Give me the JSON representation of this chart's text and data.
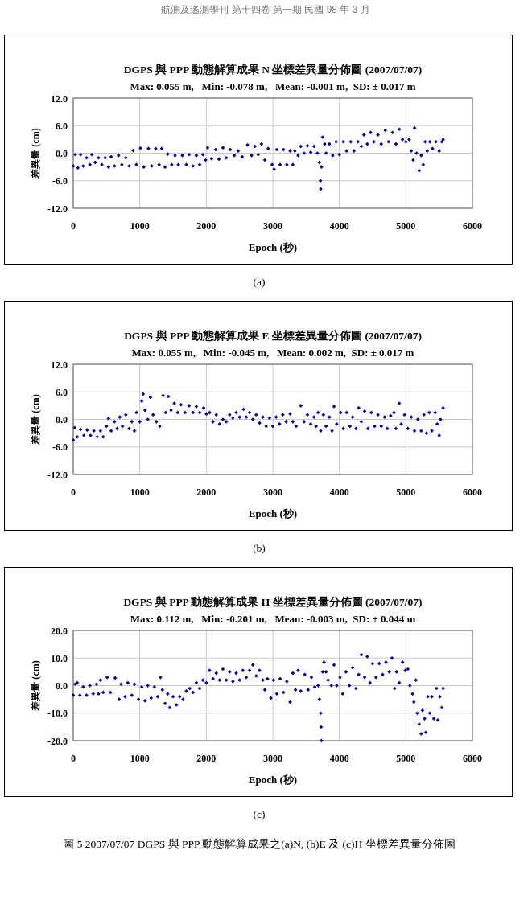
{
  "chart_data": [
    {
      "type": "scatter",
      "title": "DGPS 與 PPP 動態解算成果 N 坐標差異量分佈圖 (2007/07/07)",
      "subtitle": "Max: 0.055 m,   Min: -0.078 m,   Mean: -0.001 m,  SD: ± 0.017 m",
      "xlabel": "Epoch (秒)",
      "ylabel": "差異量 (cm)",
      "annotations": [
        "航測及遙測學刊 第十四卷 第一期 民國 98 年 3 月",
        "(a)"
      ],
      "x": [
        0,
        30,
        70,
        110,
        150,
        200,
        250,
        280,
        330,
        380,
        430,
        480,
        530,
        570,
        620,
        680,
        730,
        790,
        840,
        900,
        950,
        1010,
        1060,
        1130,
        1180,
        1240,
        1290,
        1330,
        1380,
        1420,
        1480,
        1530,
        1580,
        1640,
        1700,
        1740,
        1800,
        1850,
        1900,
        1950,
        1990,
        2020,
        2080,
        2140,
        2190,
        2250,
        2300,
        2360,
        2420,
        2480,
        2540,
        2620,
        2680,
        2730,
        2780,
        2830,
        2880,
        2930,
        2990,
        3020,
        3060,
        3110,
        3160,
        3210,
        3260,
        3300,
        3330,
        3380,
        3420,
        3470,
        3520,
        3570,
        3620,
        3670,
        3700,
        3715,
        3720,
        3730,
        3750,
        3780,
        3800,
        3850,
        3900,
        3950,
        4000,
        4060,
        4110,
        4170,
        4220,
        4280,
        4330,
        4370,
        4420,
        4470,
        4520,
        4580,
        4630,
        4690,
        4740,
        4800,
        4850,
        4900,
        4950,
        5000,
        5050,
        5080,
        5110,
        5130,
        5160,
        5200,
        5230,
        5260,
        5290,
        5320,
        5360,
        5400,
        5450,
        5500,
        5540,
        5560
      ],
      "series": [
        {
          "color": "#000080",
          "values": [
            -2.8,
            -0.3,
            -3.2,
            -0.3,
            -2.8,
            -1.0,
            -2.5,
            -0.3,
            -2.0,
            -1.0,
            -2.5,
            -1.0,
            -3.0,
            -0.8,
            -2.8,
            -0.5,
            -2.5,
            -1.0,
            -2.8,
            0.6,
            -2.5,
            1.1,
            -3.0,
            1.0,
            -2.8,
            1.0,
            -2.5,
            1.0,
            -3.0,
            -0.2,
            -2.5,
            -0.5,
            -2.5,
            -0.5,
            -2.5,
            -0.3,
            -2.8,
            -0.5,
            -2.5,
            -0.3,
            -1.5,
            1.2,
            -1.2,
            0.8,
            -1.3,
            1.2,
            -1.0,
            0.8,
            -0.5,
            0.5,
            -0.8,
            1.8,
            -0.5,
            1.5,
            -0.3,
            2.0,
            -1.5,
            1.0,
            -2.5,
            -3.5,
            0.8,
            -2.5,
            0.8,
            -2.5,
            0.5,
            -2.5,
            0.5,
            -0.5,
            1.5,
            0.0,
            1.6,
            0.2,
            1.5,
            0.0,
            -2.0,
            -6.0,
            -7.8,
            -3.0,
            3.5,
            2.0,
            0.0,
            2.0,
            -0.5,
            2.5,
            -0.3,
            2.5,
            0.5,
            2.5,
            0.5,
            2.5,
            1.5,
            4.0,
            2.0,
            4.5,
            2.5,
            4.0,
            2.0,
            5.0,
            2.5,
            4.5,
            2.0,
            5.2,
            3.0,
            2.5,
            3.0,
            0.5,
            -1.5,
            5.5,
            0.0,
            -3.8,
            -0.5,
            -2.5,
            2.5,
            0.5,
            2.5,
            1.0,
            2.5,
            0.5,
            2.5,
            3.0
          ]
        }
      ],
      "xlim": [
        0,
        6000
      ],
      "ylim": [
        -12,
        12
      ],
      "xticks": [
        0,
        1000,
        2000,
        3000,
        4000,
        5000,
        6000
      ],
      "yticks": [
        {
          "value": 12,
          "label": "12.0"
        },
        {
          "value": 6,
          "label": "6.0"
        },
        {
          "value": 0,
          "label": "0.0"
        },
        {
          "value": -6,
          "label": "-6.0"
        },
        {
          "value": -12,
          "label": "-12.0"
        }
      ],
      "grid": true,
      "marker": "diamond"
    },
    {
      "type": "scatter",
      "title": "DGPS 與 PPP 動態解算成果 E 坐標差異量分佈圖 (2007/07/07)",
      "subtitle": "Max: 0.055 m,   Min: -0.045 m,   Mean: 0.002 m,  SD: ± 0.017 m",
      "xlabel": "Epoch (秒)",
      "ylabel": "差異量 (cm)",
      "annotations": [
        "(b)"
      ],
      "x": [
        0,
        20,
        60,
        110,
        160,
        210,
        260,
        310,
        360,
        410,
        450,
        500,
        530,
        570,
        620,
        660,
        700,
        740,
        790,
        840,
        880,
        920,
        950,
        1000,
        1030,
        1050,
        1080,
        1120,
        1160,
        1200,
        1250,
        1300,
        1350,
        1390,
        1430,
        1470,
        1520,
        1570,
        1620,
        1680,
        1740,
        1800,
        1850,
        1900,
        1960,
        2000,
        2050,
        2100,
        2150,
        2200,
        2250,
        2300,
        2350,
        2400,
        2450,
        2500,
        2560,
        2600,
        2650,
        2700,
        2750,
        2800,
        2850,
        2900,
        2950,
        3000,
        3050,
        3100,
        3150,
        3200,
        3260,
        3300,
        3350,
        3420,
        3470,
        3520,
        3570,
        3620,
        3650,
        3680,
        3720,
        3760,
        3800,
        3850,
        3890,
        3920,
        3960,
        4020,
        4060,
        4110,
        4160,
        4200,
        4250,
        4290,
        4330,
        4380,
        4430,
        4480,
        4530,
        4580,
        4630,
        4680,
        4720,
        4770,
        4820,
        4850,
        4900,
        4930,
        4980,
        5030,
        5080,
        5130,
        5180,
        5230,
        5270,
        5310,
        5350,
        5390,
        5440,
        5470,
        5500,
        5520,
        5560
      ],
      "series": [
        {
          "color": "#000080",
          "values": [
            -4.5,
            -1.8,
            -3.8,
            -2.2,
            -3.5,
            -2.3,
            -3.5,
            -2.5,
            -3.8,
            -2.5,
            -3.8,
            -1.5,
            0.2,
            -2.5,
            -0.5,
            -2.0,
            0.5,
            -1.5,
            1.0,
            -2.0,
            -0.5,
            -2.5,
            1.5,
            -0.5,
            4.0,
            5.5,
            2.0,
            0.0,
            4.8,
            1.0,
            -0.5,
            -1.5,
            5.2,
            1.5,
            5.0,
            2.0,
            3.5,
            1.5,
            3.2,
            1.5,
            3.0,
            1.5,
            2.8,
            1.5,
            2.5,
            1.2,
            1.5,
            -0.5,
            1.0,
            -1.0,
            0.0,
            -0.5,
            1.0,
            0.3,
            1.5,
            0.5,
            2.2,
            0.5,
            1.5,
            0.0,
            1.0,
            -0.8,
            0.5,
            -1.5,
            0.3,
            -1.5,
            0.5,
            -1.0,
            1.0,
            -0.5,
            1.2,
            -0.5,
            -1.5,
            3.0,
            -0.5,
            1.0,
            -1.0,
            0.5,
            -1.5,
            1.5,
            -2.5,
            1.0,
            -1.5,
            0.5,
            -2.5,
            2.8,
            -1.0,
            1.5,
            -2.0,
            1.5,
            -1.5,
            0.5,
            -2.0,
            2.5,
            -0.5,
            1.8,
            -2.0,
            1.5,
            -1.5,
            1.0,
            -1.5,
            0.5,
            -2.0,
            0.8,
            1.5,
            -2.0,
            3.5,
            -1.0,
            1.0,
            -2.0,
            0.5,
            -2.5,
            0.0,
            -2.5,
            1.0,
            -3.0,
            1.5,
            -2.5,
            1.5,
            -1.0,
            -3.5,
            0.0,
            2.5
          ]
        }
      ],
      "xlim": [
        0,
        6000
      ],
      "ylim": [
        -12,
        12
      ],
      "xticks": [
        0,
        1000,
        2000,
        3000,
        4000,
        5000,
        6000
      ],
      "yticks": [
        {
          "value": 12,
          "label": "12.0"
        },
        {
          "value": 6,
          "label": "6.0"
        },
        {
          "value": 0,
          "label": "0.0"
        },
        {
          "value": -6,
          "label": "-6.0"
        },
        {
          "value": -12,
          "label": "-12.0"
        }
      ],
      "grid": true,
      "marker": "diamond"
    },
    {
      "type": "scatter",
      "title": "DGPS 與 PPP 動態解算成果 H 坐標差異量分佈圖 (2007/07/07)",
      "subtitle": "Max: 0.112 m,   Min: -0.201 m,   Mean: -0.003 m,  SD: ± 0.044 m",
      "xlabel": "Epoch (秒)",
      "ylabel": "差異量 (cm)",
      "annotations": [
        "(c)",
        "圖 5 2007/07/07 DGPS 與 PPP 動態解算成果之(a)N, (b)E 及 (c)H 坐標差異量分佈圖"
      ],
      "x": [
        0,
        30,
        60,
        100,
        150,
        200,
        250,
        300,
        350,
        380,
        410,
        450,
        510,
        560,
        630,
        690,
        720,
        780,
        820,
        880,
        920,
        980,
        1030,
        1080,
        1120,
        1170,
        1220,
        1270,
        1310,
        1340,
        1380,
        1420,
        1450,
        1500,
        1550,
        1600,
        1650,
        1700,
        1750,
        1800,
        1850,
        1900,
        1950,
        2000,
        2050,
        2100,
        2150,
        2200,
        2250,
        2300,
        2350,
        2400,
        2450,
        2500,
        2550,
        2600,
        2650,
        2700,
        2750,
        2800,
        2850,
        2880,
        2920,
        2970,
        3010,
        3060,
        3110,
        3160,
        3210,
        3260,
        3300,
        3340,
        3380,
        3420,
        3480,
        3530,
        3580,
        3630,
        3680,
        3700,
        3720,
        3725,
        3730,
        3750,
        3770,
        3800,
        3830,
        3880,
        3920,
        3960,
        4010,
        4050,
        4100,
        4150,
        4200,
        4250,
        4290,
        4330,
        4380,
        4420,
        4460,
        4500,
        4550,
        4600,
        4650,
        4700,
        4750,
        4790,
        4830,
        4860,
        4900,
        4950,
        4990,
        5030,
        5060,
        5100,
        5120,
        5150,
        5170,
        5200,
        5230,
        5250,
        5280,
        5300,
        5330,
        5360,
        5390,
        5420,
        5460,
        5480,
        5510,
        5540,
        5560
      ],
      "series": [
        {
          "color": "#000080",
          "values": [
            -3.5,
            0.5,
            1.0,
            -3.5,
            -0.5,
            -3.5,
            0.0,
            -3.0,
            0.5,
            -3.0,
            2.0,
            -2.5,
            3.0,
            -2.5,
            2.8,
            -5.0,
            0.5,
            -4.0,
            1.0,
            -3.5,
            0.5,
            -5.0,
            -0.5,
            -5.5,
            0.0,
            -4.5,
            -0.5,
            -4.0,
            3.0,
            -1.5,
            -6.5,
            -3.0,
            -8.0,
            -4.0,
            -7.0,
            -4.0,
            -5.0,
            -2.0,
            -1.0,
            -2.5,
            1.0,
            -1.0,
            2.0,
            1.0,
            5.5,
            2.5,
            4.5,
            2.0,
            6.0,
            2.0,
            5.0,
            1.5,
            4.5,
            2.0,
            5.5,
            3.0,
            5.5,
            7.5,
            3.5,
            5.5,
            2.0,
            -1.5,
            2.5,
            -4.5,
            2.0,
            -3.0,
            2.5,
            -2.5,
            1.5,
            -6.0,
            4.5,
            -1.5,
            5.5,
            -2.0,
            4.0,
            -1.5,
            3.0,
            -0.5,
            0.0,
            -5.0,
            -10.0,
            -15.0,
            -20.0,
            5.0,
            8.5,
            5.0,
            2.0,
            0.0,
            7.5,
            0.0,
            3.0,
            -3.0,
            5.0,
            0.0,
            6.5,
            -1.0,
            4.0,
            11.2,
            3.0,
            10.5,
            1.0,
            8.0,
            3.0,
            8.0,
            4.0,
            8.5,
            5.0,
            10.0,
            -1.0,
            5.0,
            1.0,
            8.5,
            5.5,
            6.0,
            0.0,
            -3.0,
            -6.0,
            2.0,
            -10.0,
            -14.0,
            -17.5,
            -9.0,
            -12.0,
            -17.0,
            -4.0,
            -10.0,
            -4.0,
            -12.0,
            -1.0,
            -12.5,
            -4.0,
            -8.0,
            -1.0
          ]
        }
      ],
      "xlim": [
        0,
        6000
      ],
      "ylim": [
        -20,
        20
      ],
      "xticks": [
        0,
        1000,
        2000,
        3000,
        4000,
        5000,
        6000
      ],
      "yticks": [
        {
          "value": 20,
          "label": "20.0"
        },
        {
          "value": 10,
          "label": "10.0"
        },
        {
          "value": 0,
          "label": "0.0"
        },
        {
          "value": -10,
          "label": "-10.0"
        },
        {
          "value": -20,
          "label": "-20.0"
        }
      ],
      "grid": true,
      "marker": "diamond"
    }
  ]
}
